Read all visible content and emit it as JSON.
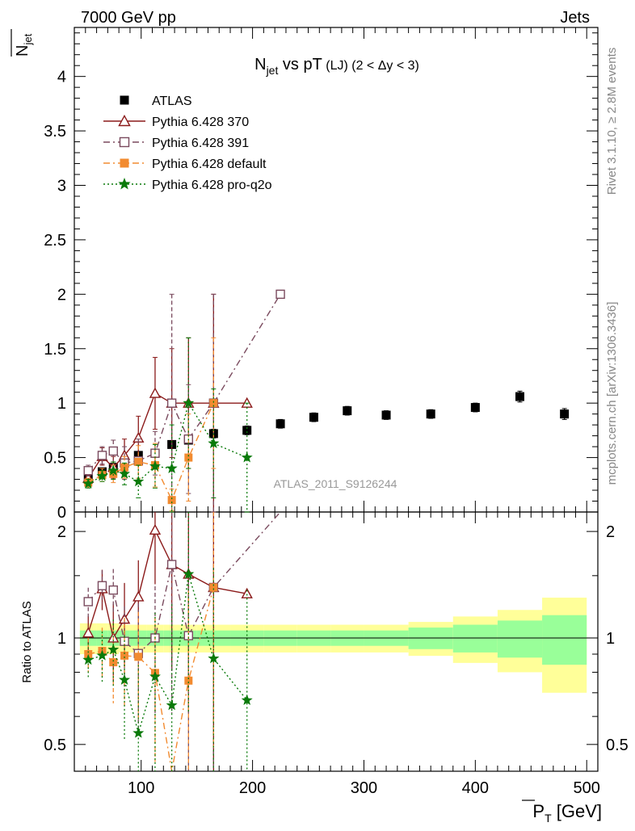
{
  "header": {
    "left": "7000 GeV pp",
    "right": "Jets"
  },
  "side_text": {
    "rivet": "Rivet 3.1.10, ≥ 2.8M events",
    "mcplots": "mcplots.cern.ch [arXiv:1306.3436]"
  },
  "watermark": "ATLAS_2011_S9126244",
  "chart_data": {
    "type": "scatter",
    "title": {
      "main": "N",
      "main_sub": "jet",
      "rest": " vs pT",
      "small": " (LJ) (2 < Δy < 3)"
    },
    "ylabel": {
      "main": "N",
      "sub": "jet"
    },
    "xlabel": {
      "main": "P",
      "sub": "T",
      "unit": " [GeV]"
    },
    "ratio_ylabel": "Ratio to ATLAS",
    "xlim": [
      40,
      510
    ],
    "ylim": [
      0,
      4.5
    ],
    "ratio_ylim": [
      0.42,
      2.27
    ],
    "x_ticks": [
      "100",
      "200",
      "300",
      "400",
      "500"
    ],
    "y_ticks": [
      "0",
      "0.5",
      "1",
      "1.5",
      "2",
      "2.5",
      "3",
      "3.5",
      "4"
    ],
    "ratio_ticks": [
      "0.5",
      "1",
      "2"
    ],
    "legend_position": "top-left",
    "bins": [
      [
        45,
        60
      ],
      [
        60,
        70
      ],
      [
        70,
        80
      ],
      [
        80,
        90
      ],
      [
        90,
        105
      ],
      [
        105,
        120
      ],
      [
        120,
        135
      ],
      [
        135,
        150
      ],
      [
        150,
        180
      ],
      [
        180,
        210
      ],
      [
        210,
        240
      ],
      [
        240,
        270
      ],
      [
        270,
        300
      ],
      [
        300,
        340
      ],
      [
        340,
        380
      ],
      [
        380,
        420
      ],
      [
        420,
        460
      ],
      [
        460,
        500
      ]
    ],
    "band_inner": [
      0.05,
      0.05,
      0.05,
      0.05,
      0.05,
      0.05,
      0.05,
      0.05,
      0.05,
      0.05,
      0.05,
      0.05,
      0.05,
      0.05,
      0.07,
      0.09,
      0.12,
      0.16
    ],
    "band_outer": [
      0.1,
      0.1,
      0.1,
      0.09,
      0.09,
      0.09,
      0.09,
      0.09,
      0.09,
      0.09,
      0.09,
      0.09,
      0.09,
      0.09,
      0.11,
      0.15,
      0.2,
      0.3
    ],
    "series": [
      {
        "name": "ATLAS",
        "color": "#000000",
        "marker": "square-filled",
        "line": "none",
        "x": [
          52.5,
          65,
          75,
          85,
          97.5,
          112.5,
          127.5,
          142.5,
          165,
          195,
          225,
          255,
          285,
          320,
          360,
          400,
          440,
          480
        ],
        "y": [
          0.3,
          0.37,
          0.41,
          0.46,
          0.52,
          0.54,
          0.62,
          0.66,
          0.72,
          0.75,
          0.81,
          0.87,
          0.93,
          0.89,
          0.9,
          0.96,
          1.06,
          0.9
        ],
        "err": [
          0.02,
          0.02,
          0.02,
          0.02,
          0.03,
          0.03,
          0.03,
          0.03,
          0.04,
          0.04,
          0.04,
          0.04,
          0.04,
          0.04,
          0.04,
          0.04,
          0.05,
          0.05
        ]
      },
      {
        "name": "Pythia 6.428 370",
        "color": "#8b1a1a",
        "marker": "triangle-open",
        "line": "solid",
        "x": [
          52.5,
          65,
          75,
          85,
          97.5,
          112.5,
          127.5,
          142.5,
          165,
          195
        ],
        "y": [
          0.31,
          0.51,
          0.41,
          0.52,
          0.68,
          1.09,
          1.0,
          1.0,
          1.0,
          1.0
        ],
        "err": [
          0.05,
          0.08,
          0.1,
          0.15,
          0.2,
          0.33,
          0.5,
          0.6,
          1.0,
          0
        ],
        "ratio_err": [
          0.12,
          0.18,
          0.25,
          0.3,
          0.35,
          0.6,
          0.8,
          0.9,
          1.39,
          0
        ]
      },
      {
        "name": "Pythia 6.428 391",
        "color": "#7a4a5e",
        "marker": "square-open",
        "line": "dashdot",
        "x": [
          52.5,
          65,
          75,
          85,
          97.5,
          112.5,
          127.5,
          142.5,
          165,
          225
        ],
        "y": [
          0.38,
          0.52,
          0.56,
          0.45,
          0.47,
          0.54,
          1.0,
          0.67,
          1.0,
          2.0
        ],
        "err": [
          0.05,
          0.08,
          0.1,
          0.15,
          0.2,
          0.2,
          1.0,
          0.5,
          1.0,
          0
        ],
        "ratio_err": [
          0.12,
          0.15,
          0.2,
          0.25,
          0.35,
          0.4,
          1.0,
          0.7,
          1.39,
          0
        ]
      },
      {
        "name": "Pythia 6.428 default",
        "color": "#f28b30",
        "marker": "square-filled",
        "line": "dashdot",
        "x": [
          52.5,
          65,
          75,
          85,
          97.5,
          112.5,
          127.5,
          142.5,
          165
        ],
        "y": [
          0.27,
          0.34,
          0.35,
          0.41,
          0.46,
          0.43,
          0.11,
          0.5,
          1.0
        ],
        "err": [
          0.04,
          0.06,
          0.08,
          0.1,
          0.15,
          0.2,
          0.1,
          0.4,
          0.6
        ],
        "ratio_err": [
          0.1,
          0.15,
          0.2,
          0.25,
          0.3,
          0.35,
          0.2,
          0.6,
          0.9
        ]
      },
      {
        "name": "Pythia 6.428 pro-q2o",
        "color": "#0a7a0a",
        "marker": "star-filled",
        "line": "dotted",
        "x": [
          52.5,
          65,
          75,
          85,
          97.5,
          112.5,
          127.5,
          142.5,
          165,
          195
        ],
        "y": [
          0.26,
          0.33,
          0.38,
          0.35,
          0.28,
          0.42,
          0.4,
          1.0,
          0.63,
          0.5
        ],
        "err": [
          0.04,
          0.05,
          0.08,
          0.1,
          0.15,
          0.2,
          0.4,
          0.6,
          0.5,
          0.5
        ],
        "ratio_err": [
          0.1,
          0.15,
          0.2,
          0.25,
          0.3,
          0.4,
          0.6,
          0.9,
          0.7,
          0.7
        ]
      }
    ]
  }
}
